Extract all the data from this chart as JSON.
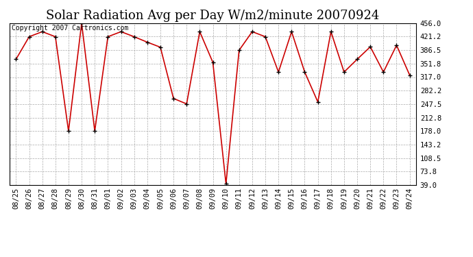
{
  "title": "Solar Radiation Avg per Day W/m2/minute 20070924",
  "copyright_text": "Copyright 2007 Cartronics.com",
  "x_labels": [
    "08/25",
    "08/26",
    "08/27",
    "08/28",
    "08/29",
    "08/30",
    "08/31",
    "09/01",
    "09/02",
    "09/03",
    "09/04",
    "09/05",
    "09/06",
    "09/07",
    "09/08",
    "09/09",
    "09/10",
    "09/11",
    "09/12",
    "09/13",
    "09/14",
    "09/15",
    "09/16",
    "09/17",
    "09/18",
    "09/19",
    "09/20",
    "09/21",
    "09/22",
    "09/23",
    "09/24"
  ],
  "y_values": [
    363,
    421,
    434,
    421,
    178,
    456,
    178,
    421,
    434,
    421,
    407,
    394,
    262,
    248,
    434,
    355,
    42,
    386,
    434,
    421,
    330,
    434,
    330,
    253,
    434,
    330,
    363,
    395,
    330,
    399,
    322
  ],
  "y_ticks": [
    39.0,
    73.8,
    108.5,
    143.2,
    178.0,
    212.8,
    247.5,
    282.2,
    317.0,
    351.8,
    386.5,
    421.2,
    456.0
  ],
  "line_color": "#cc0000",
  "marker": "+",
  "marker_color": "#000000",
  "background_color": "#ffffff",
  "grid_color": "#aaaaaa",
  "title_fontsize": 13,
  "copyright_fontsize": 7,
  "tick_fontsize": 7.5,
  "figwidth": 6.9,
  "figheight": 3.75,
  "dpi": 100
}
